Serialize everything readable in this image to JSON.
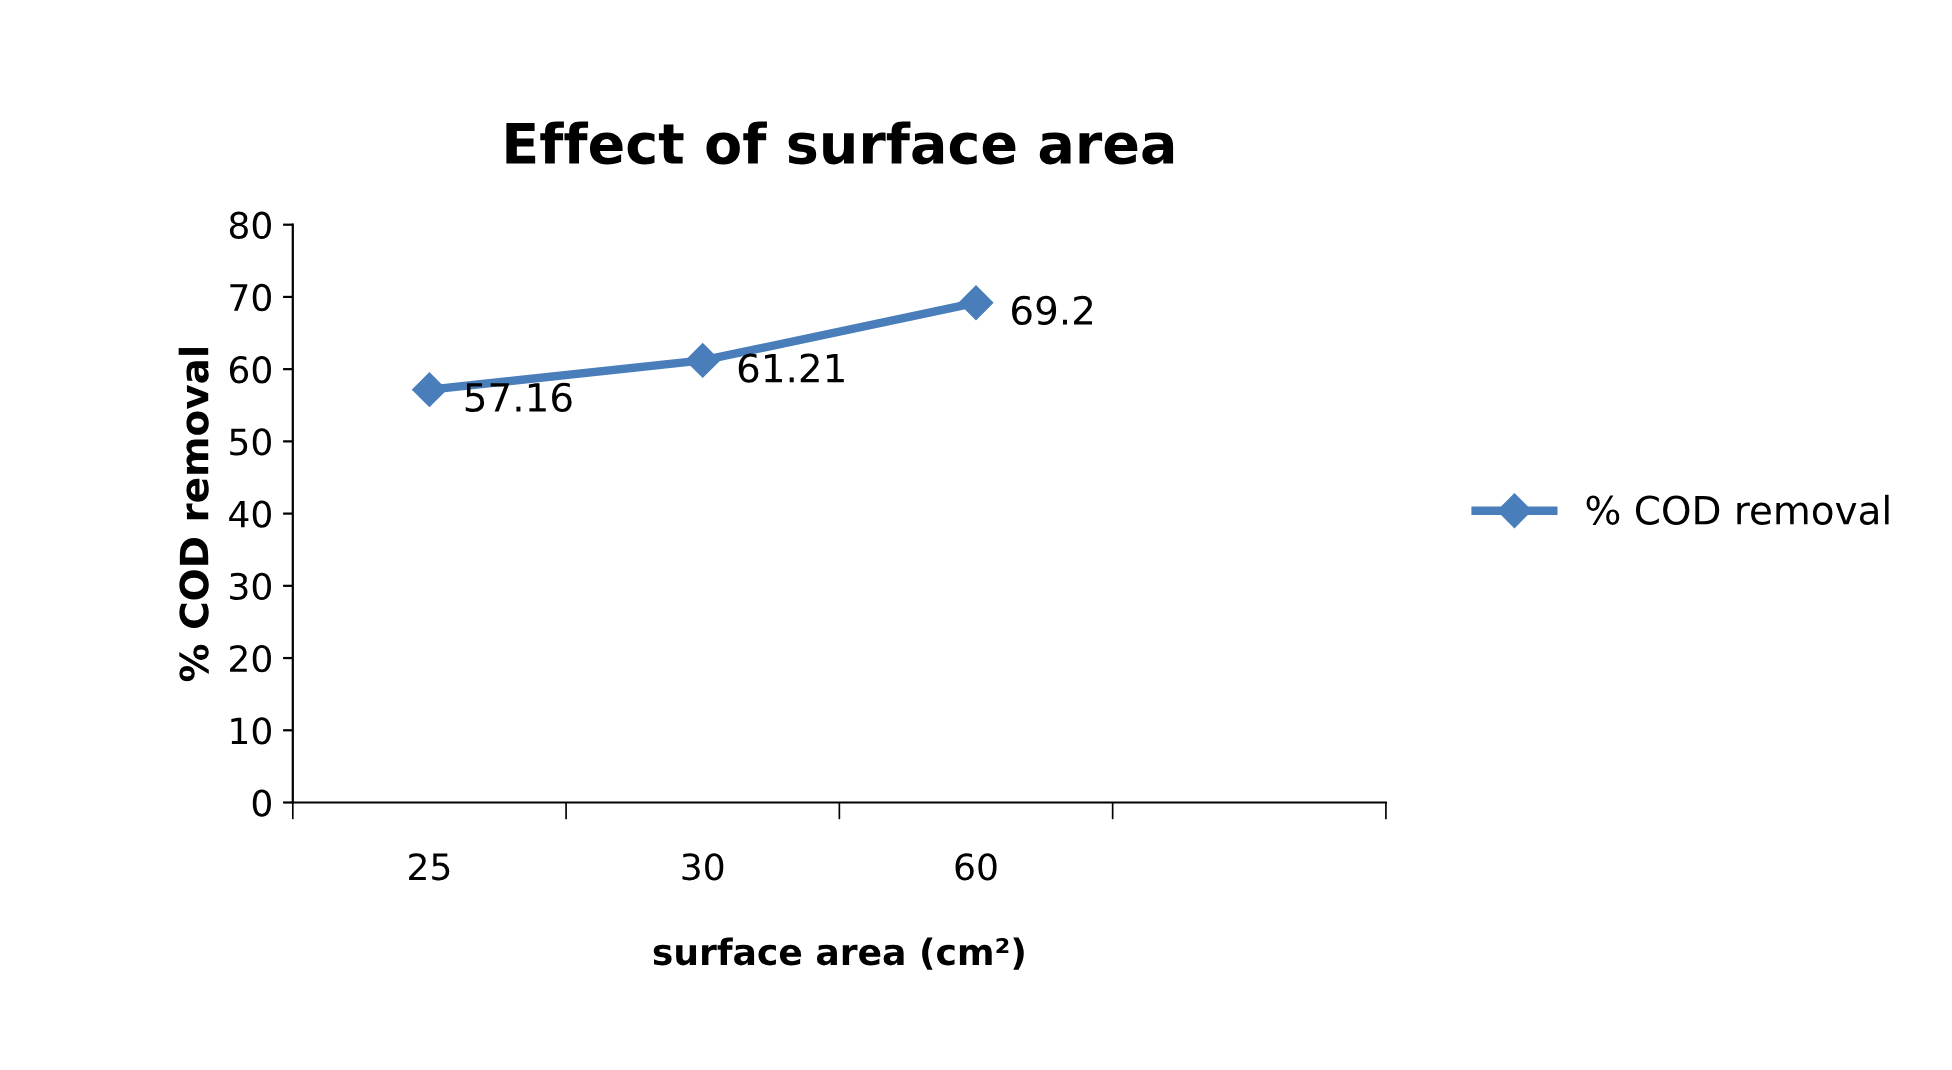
{
  "chart_data": {
    "type": "line",
    "title": "Effect of surface area",
    "xlabel": "surface area (cm²)",
    "ylabel": "% COD removal",
    "categories": [
      "25",
      "30",
      "60",
      null
    ],
    "series": [
      {
        "name": "% COD removal",
        "color": "#4a7ebb",
        "values": [
          57.16,
          61.21,
          69.2,
          null
        ]
      }
    ],
    "ylim": [
      0,
      80
    ],
    "yticks": [
      0,
      10,
      20,
      30,
      40,
      50,
      60,
      70,
      80
    ],
    "grid": false,
    "legend": "right",
    "marker": "diamond",
    "line_style": "solid",
    "data_labels": true
  }
}
